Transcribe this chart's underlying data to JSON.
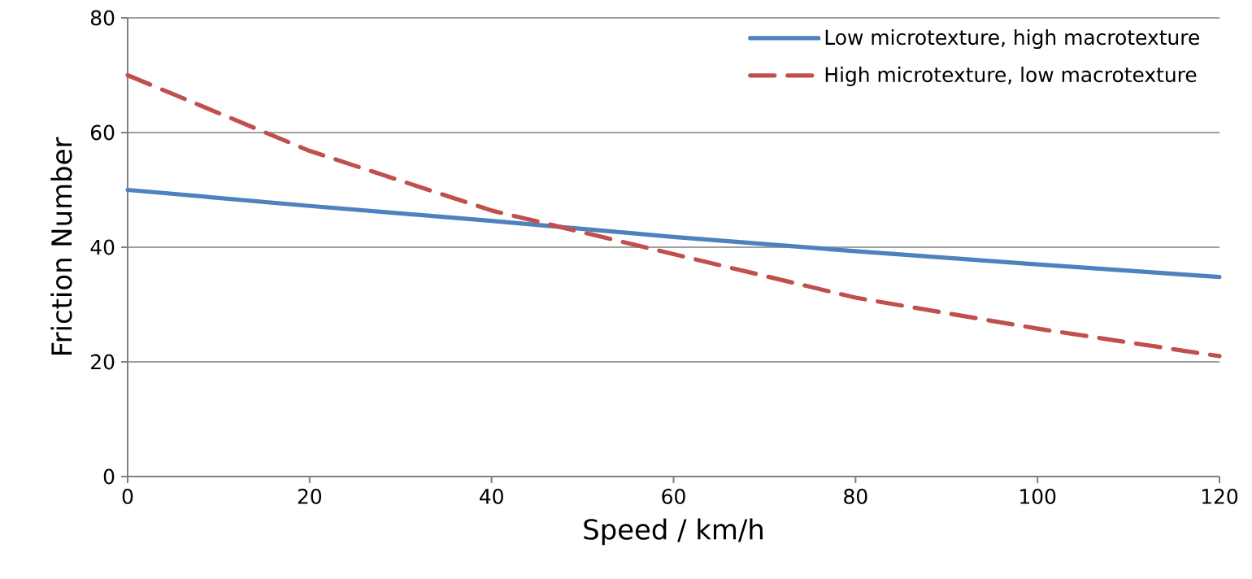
{
  "chart_data": {
    "type": "line",
    "xlabel": "Speed / km/h",
    "ylabel": "Friction Number",
    "x": [
      0,
      20,
      40,
      60,
      80,
      100,
      120
    ],
    "series": [
      {
        "name": "Low microtexture, high macrotexture",
        "color": "#4f81bd",
        "line_style": "solid",
        "values": [
          50,
          47.2,
          44.6,
          41.8,
          39.3,
          37.0,
          34.8
        ]
      },
      {
        "name": "High microtexture, low macrotexture",
        "color": "#c0504d",
        "line_style": "dashed",
        "values": [
          70,
          56.8,
          46.4,
          38.8,
          31.2,
          25.8,
          21.0
        ]
      }
    ],
    "xlim": [
      0,
      120
    ],
    "ylim": [
      0,
      80
    ],
    "xticks": [
      0,
      20,
      40,
      60,
      80,
      100,
      120
    ],
    "yticks": [
      0,
      20,
      40,
      60,
      80
    ],
    "grid": "y",
    "legend": "top right",
    "marker": "none"
  }
}
